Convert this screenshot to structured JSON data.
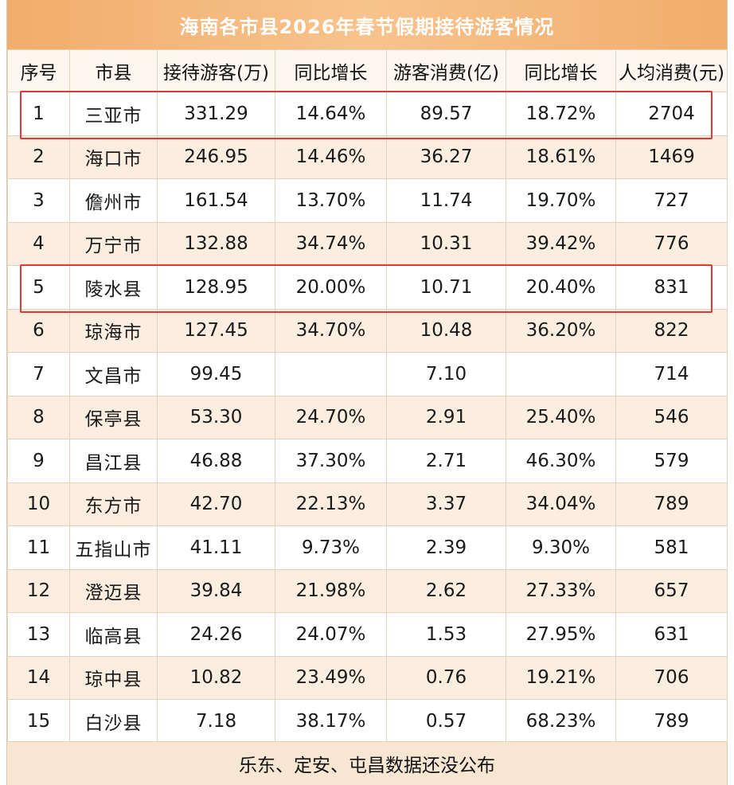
{
  "title": "海南各市县2026年春节假期接待游客情况",
  "headers": [
    "序号",
    "市县",
    "接待游客(万)",
    "同比增长",
    "游客消费(亿)",
    "同比增长",
    "人均消费(元)"
  ],
  "rows": [
    [
      "1",
      "三亚市",
      "331.29",
      "14.64%",
      "89.57",
      "18.72%",
      "2704"
    ],
    [
      "2",
      "海口市",
      "246.95",
      "14.46%",
      "36.27",
      "18.61%",
      "1469"
    ],
    [
      "3",
      "儋州市",
      "161.54",
      "13.70%",
      "11.74",
      "19.70%",
      "727"
    ],
    [
      "4",
      "万宁市",
      "132.88",
      "34.74%",
      "10.31",
      "39.42%",
      "776"
    ],
    [
      "5",
      "陵水县",
      "128.95",
      "20.00%",
      "10.71",
      "20.40%",
      "831"
    ],
    [
      "6",
      "琼海市",
      "127.45",
      "34.70%",
      "10.48",
      "36.20%",
      "822"
    ],
    [
      "7",
      "文昌市",
      "99.45",
      "",
      "7.10",
      "",
      "714"
    ],
    [
      "8",
      "保亭县",
      "53.30",
      "24.70%",
      "2.91",
      "25.40%",
      "546"
    ],
    [
      "9",
      "昌江县",
      "46.88",
      "37.30%",
      "2.71",
      "46.30%",
      "579"
    ],
    [
      "10",
      "东方市",
      "42.70",
      "22.13%",
      "3.37",
      "34.04%",
      "789"
    ],
    [
      "11",
      "五指山市",
      "41.11",
      "9.73%",
      "2.39",
      "9.30%",
      "581"
    ],
    [
      "12",
      "澄迈县",
      "39.84",
      "21.98%",
      "2.62",
      "27.33%",
      "657"
    ],
    [
      "13",
      "临高县",
      "24.26",
      "24.07%",
      "1.53",
      "27.95%",
      "631"
    ],
    [
      "14",
      "琼中县",
      "10.82",
      "23.49%",
      "0.76",
      "19.21%",
      "706"
    ],
    [
      "15",
      "白沙县",
      "7.18",
      "38.17%",
      "0.57",
      "68.23%",
      "789"
    ]
  ],
  "highlighted_rows": [
    "1",
    "5"
  ],
  "highlight_color": "#e0393a",
  "footer_note": "乐东、定安、屯昌数据还没公布"
}
